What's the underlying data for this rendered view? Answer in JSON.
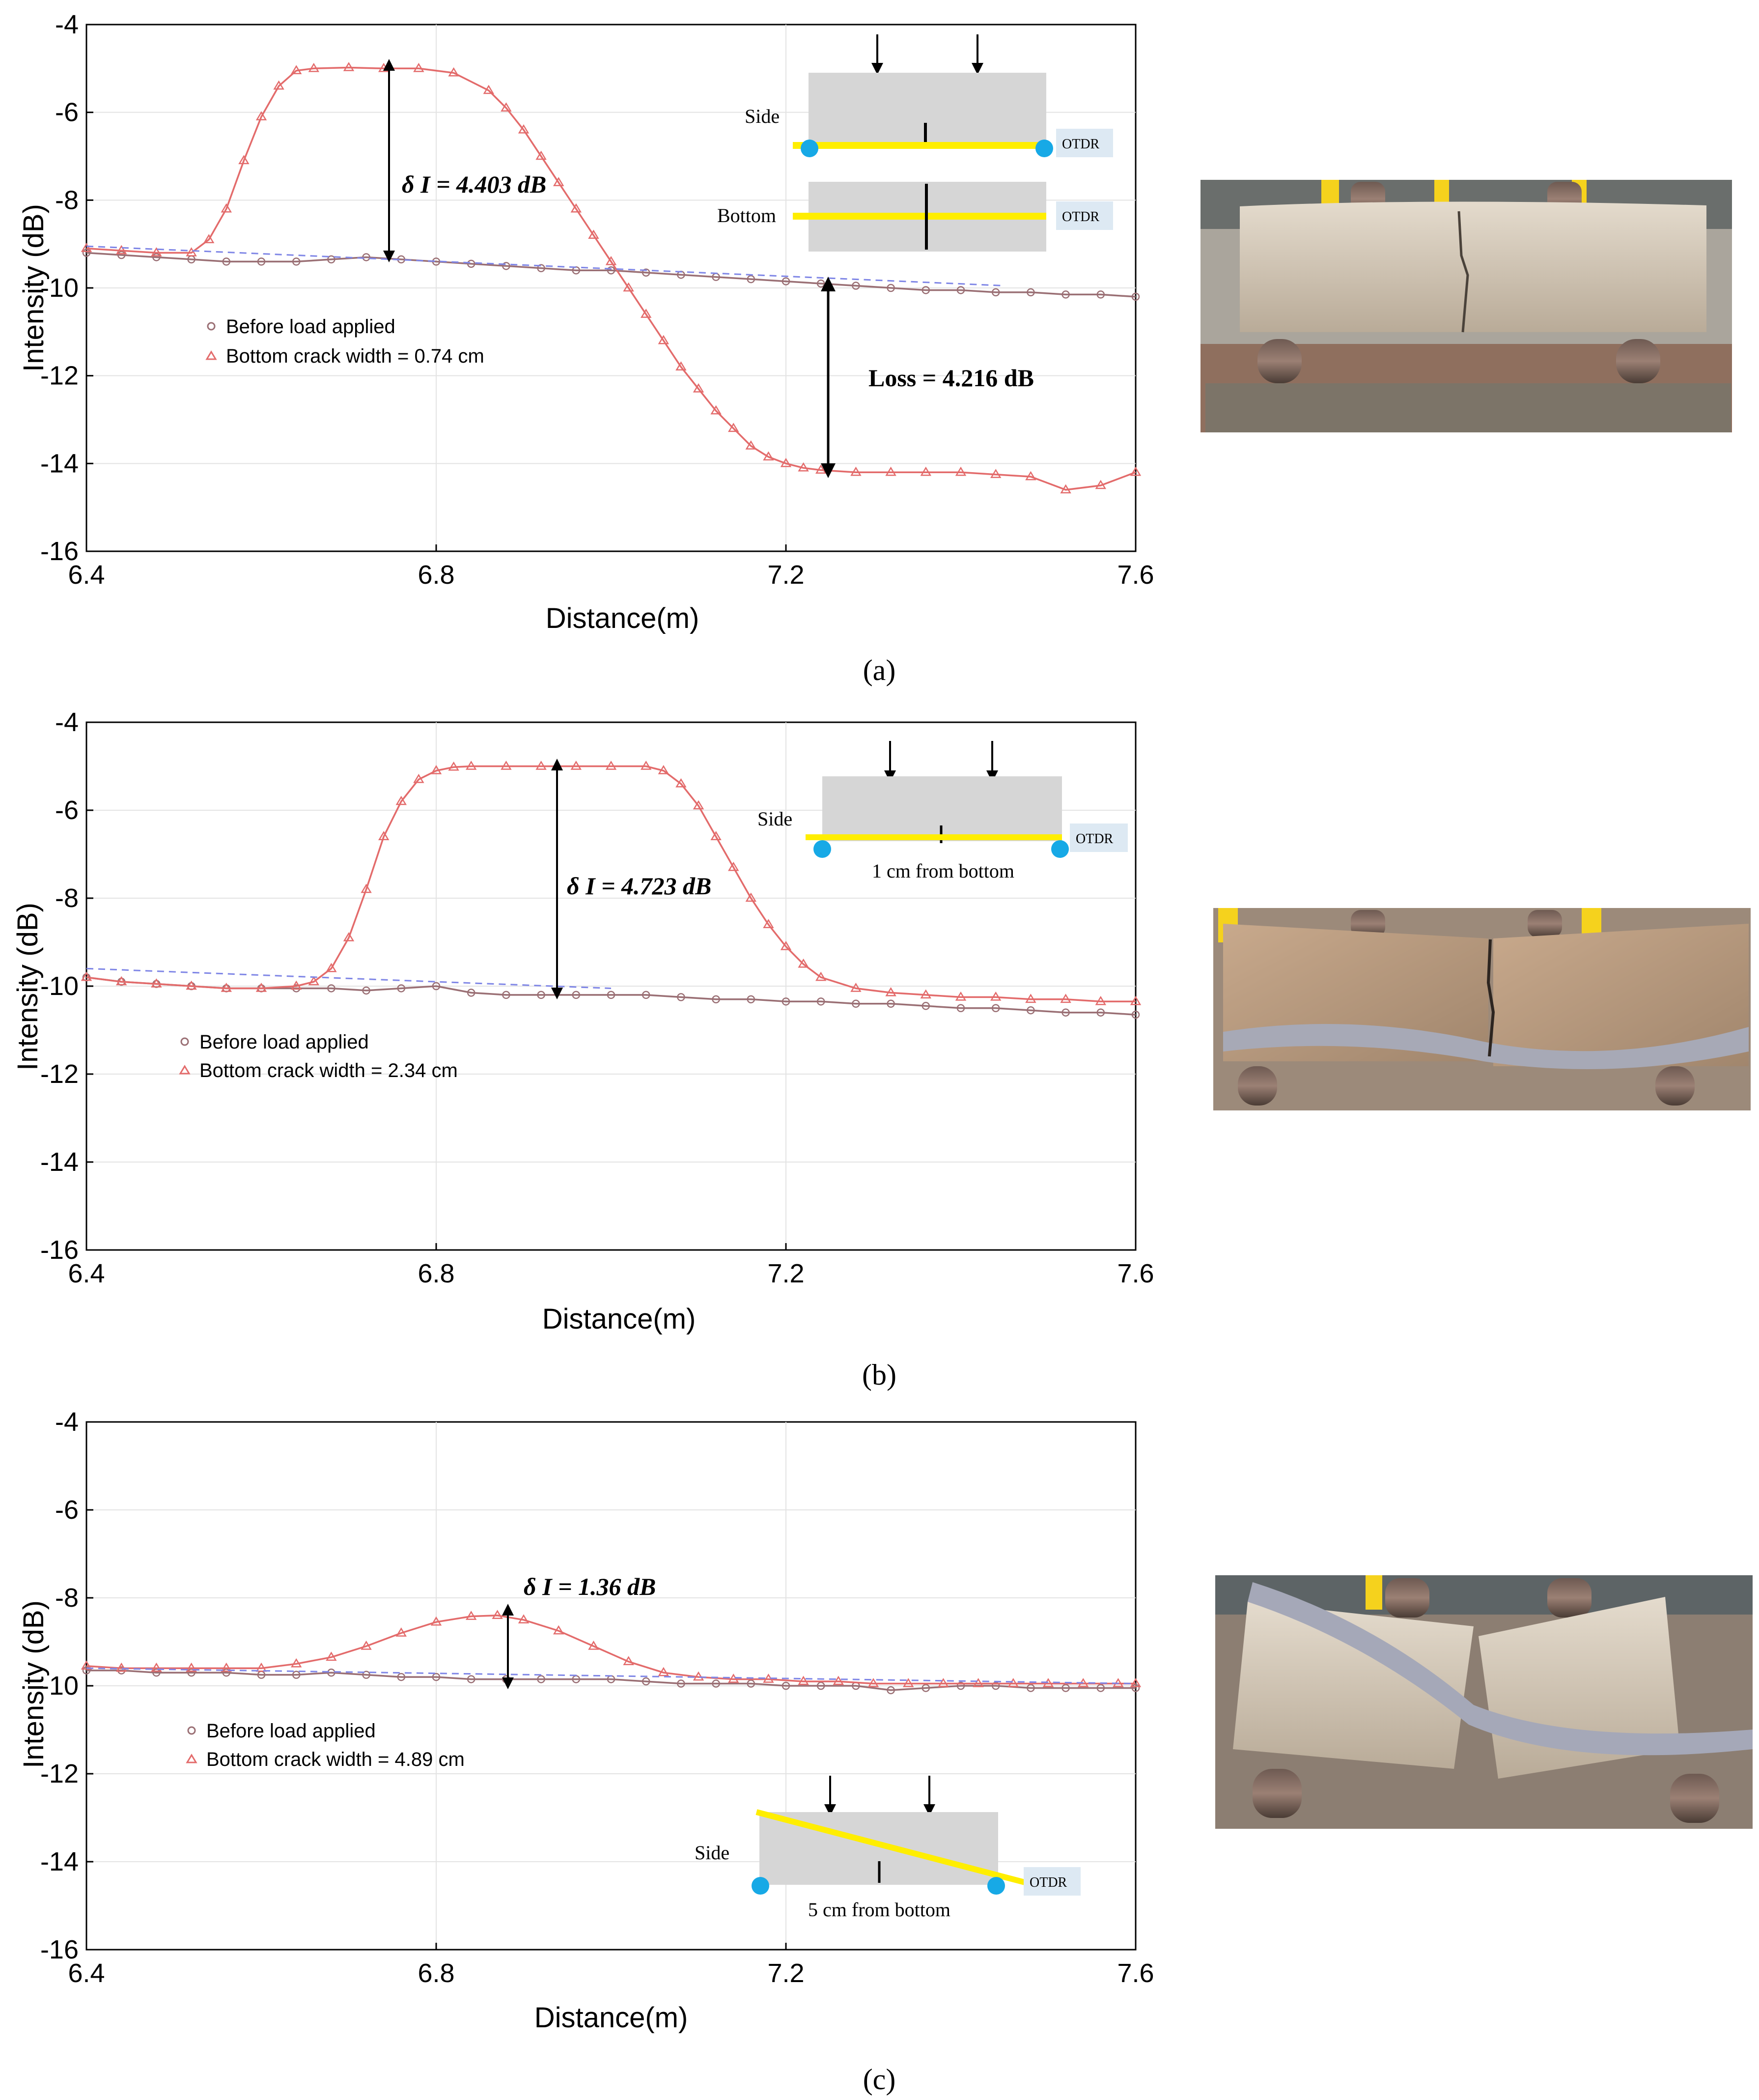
{
  "chart_data": [
    {
      "panel": "(a)",
      "type": "line",
      "xlabel": "Distance(m)",
      "ylabel": "Intensity (dB)",
      "xlim": [
        6.4,
        7.6
      ],
      "ylim": [
        -16,
        -4
      ],
      "xticks": [
        "6.4",
        "6.8",
        "7.2",
        "7.6"
      ],
      "yticks": [
        "-4",
        "-6",
        "-8",
        "-10",
        "-12",
        "-14",
        "-16"
      ],
      "grid": true,
      "legend_position": "center-left",
      "legend": [
        "Before load applied",
        "Bottom crack width = 0.74 cm"
      ],
      "series": [
        {
          "name": "Before load applied",
          "marker": "circle",
          "color": "#9a6f74",
          "x": [
            6.4,
            6.44,
            6.48,
            6.52,
            6.56,
            6.6,
            6.64,
            6.68,
            6.72,
            6.76,
            6.8,
            6.84,
            6.88,
            6.92,
            6.96,
            7.0,
            7.04,
            7.08,
            7.12,
            7.16,
            7.2,
            7.24,
            7.28,
            7.32,
            7.36,
            7.4,
            7.44,
            7.48,
            7.52,
            7.56,
            7.6
          ],
          "y": [
            -9.2,
            -9.25,
            -9.3,
            -9.35,
            -9.4,
            -9.4,
            -9.4,
            -9.35,
            -9.3,
            -9.35,
            -9.4,
            -9.45,
            -9.5,
            -9.55,
            -9.6,
            -9.6,
            -9.65,
            -9.7,
            -9.75,
            -9.8,
            -9.85,
            -9.9,
            -9.95,
            -10.0,
            -10.05,
            -10.05,
            -10.1,
            -10.1,
            -10.15,
            -10.15,
            -10.2
          ]
        },
        {
          "name": "Bottom crack width = 0.74 cm",
          "marker": "triangle",
          "color": "#e36b6b",
          "x": [
            6.4,
            6.44,
            6.48,
            6.52,
            6.54,
            6.56,
            6.58,
            6.6,
            6.62,
            6.64,
            6.66,
            6.7,
            6.74,
            6.78,
            6.82,
            6.86,
            6.88,
            6.9,
            6.92,
            6.94,
            6.96,
            6.98,
            7.0,
            7.02,
            7.04,
            7.06,
            7.08,
            7.1,
            7.12,
            7.14,
            7.16,
            7.18,
            7.2,
            7.22,
            7.24,
            7.28,
            7.32,
            7.36,
            7.4,
            7.44,
            7.48,
            7.52,
            7.56,
            7.6
          ],
          "y": [
            -9.1,
            -9.15,
            -9.2,
            -9.2,
            -8.9,
            -8.2,
            -7.1,
            -6.1,
            -5.4,
            -5.05,
            -5.0,
            -4.98,
            -5.0,
            -5.0,
            -5.1,
            -5.5,
            -5.9,
            -6.4,
            -7.0,
            -7.6,
            -8.2,
            -8.8,
            -9.4,
            -10.0,
            -10.6,
            -11.2,
            -11.8,
            -12.3,
            -12.8,
            -13.2,
            -13.6,
            -13.85,
            -14.0,
            -14.1,
            -14.15,
            -14.2,
            -14.2,
            -14.2,
            -14.2,
            -14.25,
            -14.3,
            -14.6,
            -14.5,
            -14.2
          ]
        },
        {
          "name": "",
          "marker": "none",
          "style": "dashed",
          "color": "#7f86e6",
          "x": [
            6.4,
            7.45
          ],
          "y": [
            -9.05,
            -9.95
          ]
        }
      ],
      "annotations": [
        {
          "text": "δ I = 4.403 dB",
          "x": 6.73,
          "y_from": -9.35,
          "y_to": -4.98
        },
        {
          "text": "Loss = 4.216 dB",
          "x": 7.24,
          "y_from": -9.9,
          "y_to": -14.12
        }
      ]
    },
    {
      "panel": "(b)",
      "type": "line",
      "xlabel": "Distance(m)",
      "ylabel": "Intensity (dB)",
      "xlim": [
        6.4,
        7.6
      ],
      "ylim": [
        -16,
        -4
      ],
      "xticks": [
        "6.4",
        "6.8",
        "7.2",
        "7.6"
      ],
      "yticks": [
        "-4",
        "-6",
        "-8",
        "-10",
        "-12",
        "-14",
        "-16"
      ],
      "grid": true,
      "legend_position": "center-left",
      "legend": [
        "Before load applied",
        "Bottom crack width = 2.34 cm"
      ],
      "series": [
        {
          "name": "Before load applied",
          "marker": "circle",
          "color": "#9a6f74",
          "x": [
            6.4,
            6.44,
            6.48,
            6.52,
            6.56,
            6.6,
            6.64,
            6.68,
            6.72,
            6.76,
            6.8,
            6.84,
            6.88,
            6.92,
            6.96,
            7.0,
            7.04,
            7.08,
            7.12,
            7.16,
            7.2,
            7.24,
            7.28,
            7.32,
            7.36,
            7.4,
            7.44,
            7.48,
            7.52,
            7.56,
            7.6
          ],
          "y": [
            -9.8,
            -9.9,
            -9.95,
            -10.0,
            -10.05,
            -10.05,
            -10.05,
            -10.05,
            -10.1,
            -10.05,
            -10.0,
            -10.15,
            -10.2,
            -10.2,
            -10.2,
            -10.2,
            -10.2,
            -10.25,
            -10.3,
            -10.3,
            -10.35,
            -10.35,
            -10.4,
            -10.4,
            -10.45,
            -10.5,
            -10.5,
            -10.55,
            -10.6,
            -10.6,
            -10.65
          ]
        },
        {
          "name": "Bottom crack width = 2.34 cm",
          "marker": "triangle",
          "color": "#e36b6b",
          "x": [
            6.4,
            6.44,
            6.48,
            6.52,
            6.56,
            6.6,
            6.64,
            6.66,
            6.68,
            6.7,
            6.72,
            6.74,
            6.76,
            6.78,
            6.8,
            6.82,
            6.84,
            6.88,
            6.92,
            6.96,
            7.0,
            7.04,
            7.06,
            7.08,
            7.1,
            7.12,
            7.14,
            7.16,
            7.18,
            7.2,
            7.22,
            7.24,
            7.28,
            7.32,
            7.36,
            7.4,
            7.44,
            7.48,
            7.52,
            7.56,
            7.6
          ],
          "y": [
            -9.8,
            -9.9,
            -9.95,
            -10.0,
            -10.05,
            -10.05,
            -10.0,
            -9.9,
            -9.6,
            -8.9,
            -7.8,
            -6.6,
            -5.8,
            -5.3,
            -5.1,
            -5.02,
            -5.0,
            -5.0,
            -5.0,
            -5.0,
            -5.0,
            -5.0,
            -5.1,
            -5.4,
            -5.9,
            -6.6,
            -7.3,
            -8.0,
            -8.6,
            -9.1,
            -9.5,
            -9.8,
            -10.05,
            -10.15,
            -10.2,
            -10.25,
            -10.25,
            -10.3,
            -10.3,
            -10.35,
            -10.35
          ]
        },
        {
          "name": "",
          "marker": "none",
          "style": "dashed",
          "color": "#7f86e6",
          "x": [
            6.4,
            7.0
          ],
          "y": [
            -9.6,
            -10.05
          ]
        }
      ],
      "annotations": [
        {
          "text": "δ I = 4.723 dB",
          "x": 6.92,
          "y_from": -10.2,
          "y_to": -4.98
        }
      ]
    },
    {
      "panel": "(c)",
      "type": "line",
      "xlabel": "Distance(m)",
      "ylabel": "Intensity (dB)",
      "xlim": [
        6.4,
        7.6
      ],
      "ylim": [
        -16,
        -4
      ],
      "xticks": [
        "6.4",
        "6.8",
        "7.2",
        "7.6"
      ],
      "yticks": [
        "-4",
        "-6",
        "-8",
        "-10",
        "-12",
        "-14",
        "-16"
      ],
      "grid": true,
      "legend_position": "center-left",
      "legend": [
        "Before load applied",
        "Bottom crack width = 4.89 cm"
      ],
      "series": [
        {
          "name": "Before load applied",
          "marker": "circle",
          "color": "#9a6f74",
          "x": [
            6.4,
            6.44,
            6.48,
            6.52,
            6.56,
            6.6,
            6.64,
            6.68,
            6.72,
            6.76,
            6.8,
            6.84,
            6.88,
            6.92,
            6.96,
            7.0,
            7.04,
            7.08,
            7.12,
            7.16,
            7.2,
            7.24,
            7.28,
            7.32,
            7.36,
            7.4,
            7.44,
            7.48,
            7.52,
            7.56,
            7.6
          ],
          "y": [
            -9.65,
            -9.65,
            -9.7,
            -9.7,
            -9.7,
            -9.75,
            -9.75,
            -9.7,
            -9.75,
            -9.8,
            -9.8,
            -9.85,
            -9.85,
            -9.85,
            -9.85,
            -9.85,
            -9.9,
            -9.95,
            -9.95,
            -9.95,
            -10.0,
            -10.0,
            -10.0,
            -10.1,
            -10.05,
            -10.0,
            -10.0,
            -10.05,
            -10.05,
            -10.05,
            -10.05
          ]
        },
        {
          "name": "Bottom crack width = 4.89 cm",
          "marker": "triangle",
          "color": "#e36b6b",
          "x": [
            6.4,
            6.44,
            6.48,
            6.52,
            6.56,
            6.6,
            6.64,
            6.68,
            6.72,
            6.76,
            6.8,
            6.84,
            6.87,
            6.9,
            6.94,
            6.98,
            7.02,
            7.06,
            7.1,
            7.14,
            7.18,
            7.22,
            7.26,
            7.3,
            7.34,
            7.38,
            7.42,
            7.46,
            7.5,
            7.54,
            7.58,
            7.6
          ],
          "y": [
            -9.55,
            -9.6,
            -9.6,
            -9.6,
            -9.6,
            -9.6,
            -9.5,
            -9.35,
            -9.1,
            -8.8,
            -8.55,
            -8.42,
            -8.4,
            -8.5,
            -8.75,
            -9.1,
            -9.45,
            -9.7,
            -9.8,
            -9.85,
            -9.85,
            -9.9,
            -9.9,
            -9.95,
            -9.95,
            -9.95,
            -9.95,
            -9.95,
            -9.95,
            -9.95,
            -9.95,
            -9.95
          ]
        },
        {
          "name": "",
          "marker": "none",
          "style": "dashed",
          "color": "#7f86e6",
          "x": [
            6.4,
            7.6
          ],
          "y": [
            -9.6,
            -9.95
          ]
        }
      ],
      "annotations": [
        {
          "text": "δ I =  1.36 dB",
          "x": 6.86,
          "y_from": -9.8,
          "y_to": -8.4
        }
      ]
    }
  ],
  "insets": {
    "a": {
      "side_label": "Side",
      "bottom_label": "Bottom",
      "otdr": "OTDR"
    },
    "b": {
      "side_label": "Side",
      "otdr": "OTDR",
      "caption": "1 cm from bottom"
    },
    "c": {
      "side_label": "Side",
      "otdr": "OTDR",
      "caption": "5 cm from bottom"
    }
  },
  "captions": {
    "a": "(a)",
    "b": "(b)",
    "c": "(c)"
  }
}
